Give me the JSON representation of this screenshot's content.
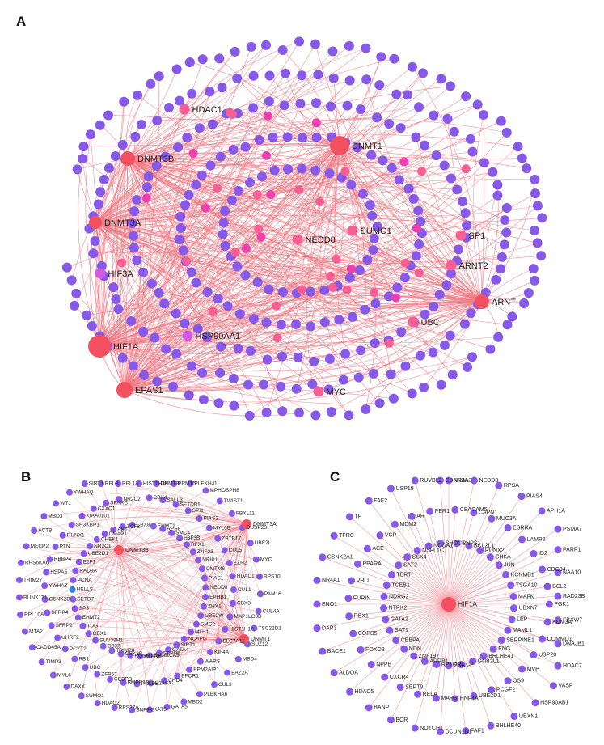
{
  "colors": {
    "edge": "#f07a84",
    "node_default": "#8659e8",
    "node_hub": "#f4505f",
    "node_mid": "#f55f93",
    "node_pink": "#ee3fae",
    "node_magenta": "#d45ae6",
    "node_blue": "#3a7bd5"
  },
  "panels": [
    {
      "letter": "A",
      "labeled_nodes": [
        {
          "label": "HDAC1",
          "role": "mid"
        },
        {
          "label": "DNMT3B",
          "role": "hub"
        },
        {
          "label": "DNMT1",
          "role": "hub"
        },
        {
          "label": "DNMT3A",
          "role": "hub"
        },
        {
          "label": "NEDD8",
          "role": "mid"
        },
        {
          "label": "SUMO1",
          "role": "mid"
        },
        {
          "label": "SP1",
          "role": "mid"
        },
        {
          "label": "ARNT2",
          "role": "mid"
        },
        {
          "label": "HIF3A",
          "role": "magenta"
        },
        {
          "label": "ARNT",
          "role": "hub"
        },
        {
          "label": "UBC",
          "role": "mid"
        },
        {
          "label": "HSP90AA1",
          "role": "magenta"
        },
        {
          "label": "HIF1A",
          "role": "hub"
        },
        {
          "label": "EPAS1",
          "role": "hub"
        },
        {
          "label": "MYC",
          "role": "mid"
        }
      ]
    },
    {
      "letter": "B",
      "hubs": [
        "DNMT3B",
        "DNMT3A",
        "DNMT1"
      ],
      "nodes": [
        "HIST1H3E",
        "CBX4",
        "EHMT1",
        "DNMT3L",
        "SALL3",
        "RPS8",
        "PRMT5",
        "SETDB1",
        "SMC4",
        "PLEKHJ1",
        "SPI1",
        "H3F3B",
        "MPHOSPH8",
        "PIAS2",
        "RFX1",
        "TWIST1",
        "MYL6B",
        "ZNF23",
        "FBXL11",
        "ZBTB17",
        "NRIP1",
        "DUSP23",
        "CUL5",
        "CMTM6",
        "UBE2I",
        "EZH2",
        "PIAS1",
        "MYC",
        "HDAC1",
        "NEDD8",
        "RPS10",
        "CUL1",
        "EPHB1",
        "PAM16",
        "CBX3",
        "ZHX1",
        "CUL4A",
        "MAP1LC3B",
        "UBE2W",
        "TSC22D1",
        "HIST1H1A",
        "SMC2",
        "SUZ12",
        "SLC7A11",
        "MLH1",
        "MBD4",
        "KIF4A",
        "NCAPG",
        "BAZ2A",
        "WARS",
        "SIRT1",
        "CUL3",
        "EPM2AIP1",
        "GATA4",
        "PLEKHA6",
        "EPDR1",
        "SFRP5",
        "MBD2",
        "CHD4",
        "SMARCA5",
        "GATA5",
        "H2AFX",
        "PTPN6",
        "KAT5",
        "POLD3",
        "RGS6",
        "SNRPG",
        "BMPR1B",
        "GSK3B",
        "RPS27A",
        "CEBPD",
        "TRIM28",
        "HDAC2",
        "ZFP57",
        "CBX5",
        "SUMO1",
        "UBC",
        "SUV39H1",
        "DAXX",
        "RB1",
        "CBX1",
        "MYL6",
        "PCYT2",
        "TDG",
        "TIMP3",
        "UHRF2",
        "EHMT2",
        "CADD45A",
        "SFRP2",
        "SP3",
        "MTA2",
        "SFRP4",
        "SETD7",
        "RPL10A",
        "CSNK2B",
        "HELLS",
        "RUNX1T1",
        "YWHAZ",
        "PCNA",
        "TRIM27",
        "HSPA5",
        "RAD9A",
        "RPS6KA6",
        "RBBP4",
        "E2F1",
        "MECP2",
        "PTN",
        "UBE2D1",
        "ACTB",
        "RUNX1",
        "NR2C1",
        "MBD3",
        "SH3KBP1",
        "CHEK1",
        "WT1",
        "KIAA0101",
        "DMAP1",
        "YWHAQ",
        "CXXC1",
        "AKT1",
        "SIRT1",
        "SPARC",
        "TCF3",
        "RELB",
        "NR2C2",
        "CBX8",
        "RPL13"
      ]
    },
    {
      "letter": "C",
      "hub": "HIF1A",
      "nodes": [
        "NR4A3",
        "CEACAM5",
        "RNPS1",
        "NEDD3",
        "CAPN1",
        "BCL2L1",
        "RPSA",
        "MUC3A",
        "RUNX2",
        "PIAS4",
        "ESRRA",
        "CHKA",
        "APH1A",
        "LAMP2",
        "JUN",
        "PSMA7",
        "ID2",
        "KCNMB1",
        "PARP1",
        "CDC34",
        "TSGA10",
        "NAA10",
        "BCL2",
        "MAFK",
        "RAD23B",
        "PGK1",
        "UBXN7",
        "FBXW7",
        "KDM3A",
        "LEP",
        "DNAJB1",
        "COMMD1",
        "MAML1",
        "HDAC7",
        "USP20",
        "SERPINE1",
        "VASP",
        "MVP",
        "ENG",
        "HSP90AB1",
        "OS9",
        "BHLHE41",
        "UBXN1",
        "PCGF2",
        "GNB2L1",
        "BHLHE40",
        "UBE2D1",
        "CP",
        "FAF1",
        "HNF4A",
        "EDN1",
        "DCUN1D1",
        "MAFG",
        "RPTOR",
        "NOTCH1",
        "RELA",
        "ARRB1",
        "BCR",
        "SEPT9",
        "ZNF197",
        "BANP",
        "CXCR4",
        "NDN",
        "HDAC5",
        "NPPB",
        "CEBPA",
        "ALDOA",
        "FOXO3",
        "SAT1",
        "BACE1",
        "COPS5",
        "GATA2",
        "DAP3",
        "RBX1",
        "NTRK2",
        "ENO1",
        "FURIN",
        "NDRG2",
        "NR4A1",
        "VHLL",
        "TCEB1",
        "CSNK2A1",
        "PPARA",
        "TERT",
        "TFRC",
        "ACE",
        "SAT2",
        "TF",
        "VCP",
        "SSX4",
        "FAF2",
        "MDM2",
        "NSFL1C",
        "USP19",
        "AR",
        "NCOA1",
        "RUVBL2",
        "PER1",
        "SHOC1",
        "CDKN2A"
      ]
    }
  ]
}
